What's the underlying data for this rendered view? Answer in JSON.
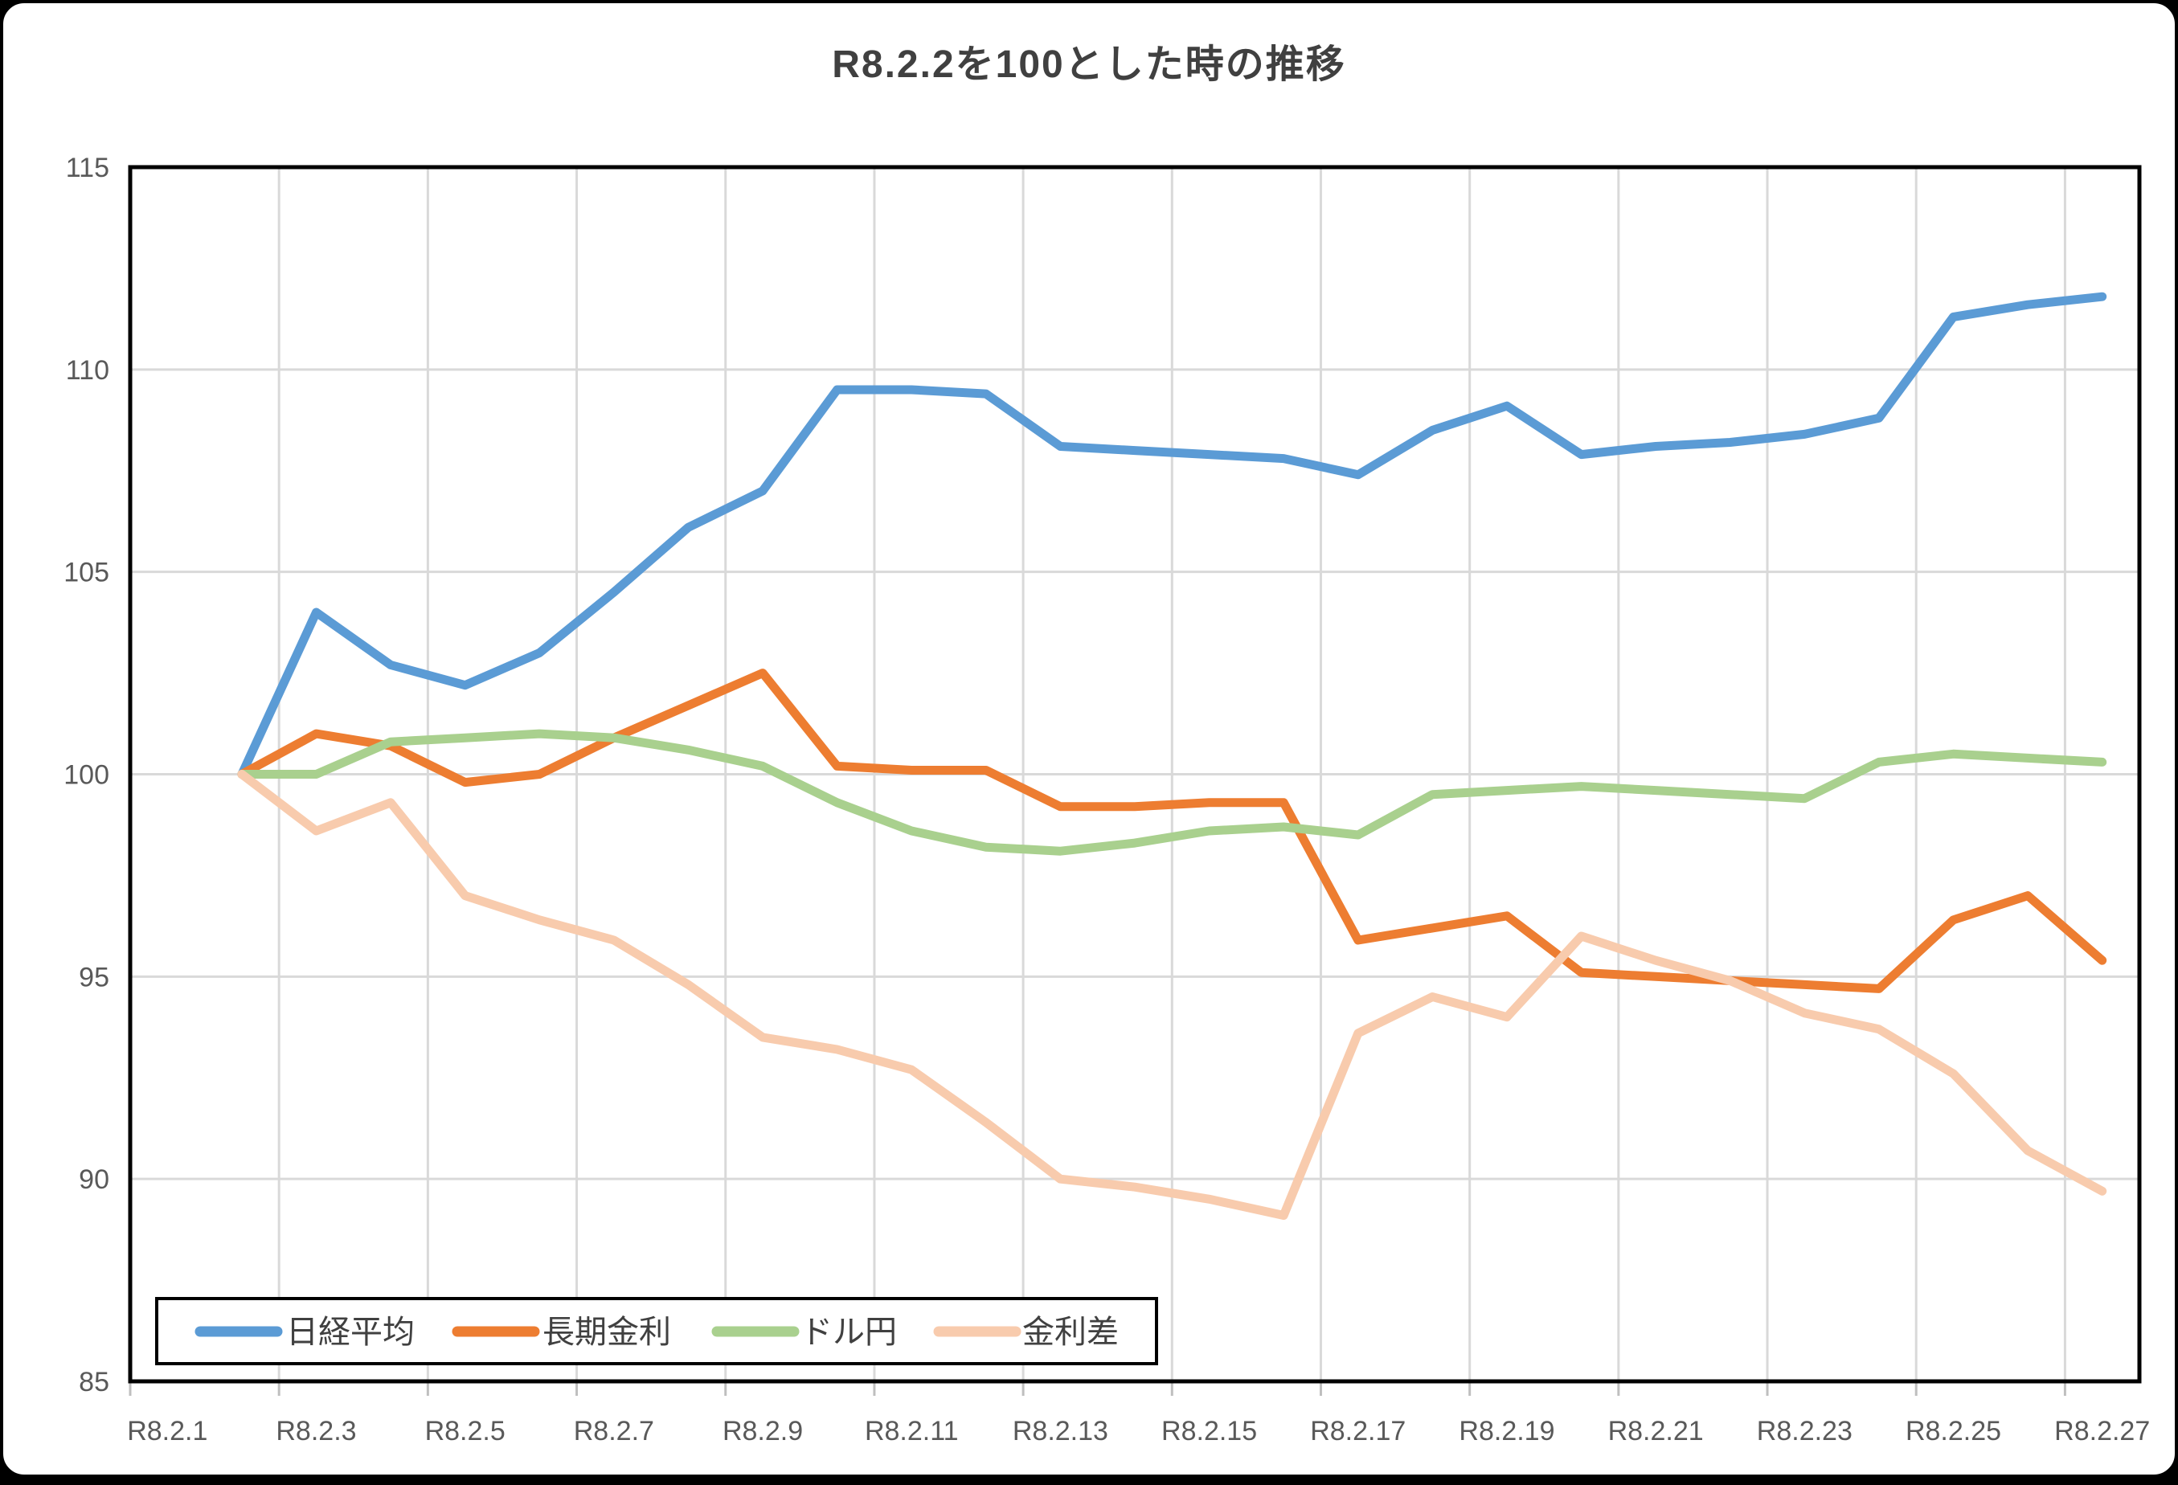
{
  "window": {
    "title": "R8.2.2を100とした時の推移"
  },
  "chart_data": {
    "type": "line",
    "title": "R8.2.2を100とした時の推移",
    "xlabel": "",
    "ylabel": "",
    "num_categories": 27,
    "first_data_category_index": 2,
    "x_tick_labels": [
      "R8.2.1",
      "R8.2.3",
      "R8.2.5",
      "R8.2.7",
      "R8.2.9",
      "R8.2.11",
      "R8.2.13",
      "R8.2.15",
      "R8.2.17",
      "R8.2.19",
      "R8.2.21",
      "R8.2.23",
      "R8.2.25",
      "R8.2.27"
    ],
    "x_tick_interval": 2,
    "ylim": [
      85,
      115
    ],
    "yticks": [
      85,
      90,
      95,
      100,
      105,
      110,
      115
    ],
    "grid": true,
    "legend_position": "bottom-left-inside",
    "series": [
      {
        "name": "日経平均",
        "color": "#5B9BD5",
        "values": [
          100,
          104.0,
          102.7,
          102.2,
          103.0,
          104.5,
          106.1,
          107.0,
          109.5,
          109.5,
          109.4,
          108.1,
          108.0,
          107.9,
          107.8,
          107.4,
          108.5,
          109.1,
          107.9,
          108.1,
          108.2,
          108.4,
          108.8,
          111.3,
          111.6,
          111.8
        ]
      },
      {
        "name": "長期金利",
        "color": "#ED7D31",
        "values": [
          100,
          101.0,
          100.7,
          99.8,
          100.0,
          100.9,
          101.7,
          102.5,
          100.2,
          100.1,
          100.1,
          99.2,
          99.2,
          99.3,
          99.3,
          95.9,
          96.2,
          96.5,
          95.1,
          95.0,
          94.9,
          94.8,
          94.7,
          96.4,
          97.0,
          95.4
        ]
      },
      {
        "name": "ドル円",
        "color": "#A9D08E",
        "values": [
          100,
          100.0,
          100.8,
          100.9,
          101.0,
          100.9,
          100.6,
          100.2,
          99.3,
          98.6,
          98.2,
          98.1,
          98.3,
          98.6,
          98.7,
          98.5,
          99.5,
          99.6,
          99.7,
          99.6,
          99.5,
          99.4,
          100.3,
          100.5,
          100.4,
          100.3
        ]
      },
      {
        "name": "金利差",
        "color": "#F8CBAD",
        "values": [
          100,
          98.6,
          99.3,
          97.0,
          96.4,
          95.9,
          94.8,
          93.5,
          93.2,
          92.7,
          91.4,
          90.0,
          89.8,
          89.5,
          89.1,
          93.6,
          94.5,
          94.0,
          96.0,
          95.4,
          94.9,
          94.1,
          93.7,
          92.6,
          90.7,
          89.7
        ]
      }
    ],
    "style": {
      "gridline_color": "#D9D9D9",
      "tick_mark_color": "#BFBFBF",
      "plot_border_color": "#000000",
      "axis_label_color": "#595959",
      "legend_text_color": "#404040",
      "title_color": "#404040",
      "background_color": "#FFFFFF"
    }
  }
}
